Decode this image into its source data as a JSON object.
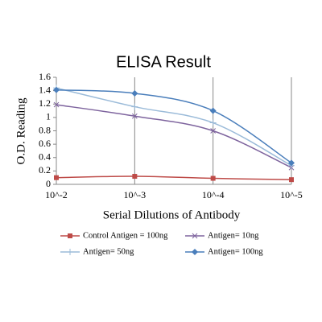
{
  "chart_data": {
    "type": "line",
    "title": "ELISA Result",
    "x_label": "Serial Dilutions  of Antibody",
    "y_label": "O.D. Reading",
    "categories": [
      "10^-2",
      "10^-3",
      "10^-4",
      "10^-5"
    ],
    "ylim": [
      0,
      1.6
    ],
    "yticks": [
      0,
      0.2,
      0.4,
      0.6,
      0.8,
      1,
      1.2,
      1.4,
      1.6
    ],
    "smooth": true,
    "series": [
      {
        "name": "Control Antigen = 100ng",
        "color": "#be4b48",
        "marker": "square",
        "values": [
          0.1,
          0.12,
          0.09,
          0.07
        ]
      },
      {
        "name": "Antigen= 10ng",
        "color": "#7e649e",
        "marker": "x",
        "values": [
          1.19,
          1.02,
          0.8,
          0.25
        ]
      },
      {
        "name": "Antigen= 50ng",
        "color": "#9bbbd9",
        "marker": "plus",
        "values": [
          1.44,
          1.16,
          0.92,
          0.28
        ]
      },
      {
        "name": "Antigen= 100ng",
        "color": "#4a7ebb",
        "marker": "diamond",
        "values": [
          1.41,
          1.36,
          1.1,
          0.32
        ]
      }
    ]
  }
}
